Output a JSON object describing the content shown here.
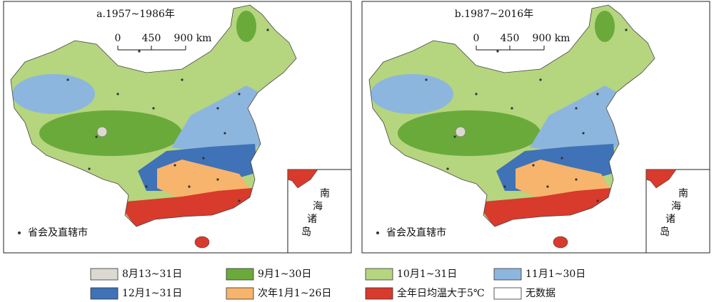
{
  "panels": [
    {
      "title": "a.1957~1986年",
      "scale_labels": [
        "0",
        "450",
        "900 km"
      ],
      "inset_label": [
        "南",
        "海",
        "诸",
        "岛"
      ],
      "point_legend": "省会及直辖市"
    },
    {
      "title": "b.1987~2016年",
      "scale_labels": [
        "0",
        "450",
        "900 km"
      ],
      "inset_label": [
        "南",
        "海",
        "诸",
        "岛"
      ],
      "point_legend": "省会及直辖市"
    }
  ],
  "legend": [
    {
      "label": "8月13~31日",
      "color": "#dcd8d2"
    },
    {
      "label": "9月1~30日",
      "color": "#6aaa3a"
    },
    {
      "label": "10月1~31日",
      "color": "#b5d57f"
    },
    {
      "label": "11月1~30日",
      "color": "#8db6de"
    },
    {
      "label": "12月1~31日",
      "color": "#3f72b6"
    },
    {
      "label": "次年1月1~26日",
      "color": "#f7b46c"
    },
    {
      "label": "全年日均温大于5℃",
      "color": "#d83a2c"
    },
    {
      "label": "无数据",
      "color": "#ffffff"
    }
  ]
}
